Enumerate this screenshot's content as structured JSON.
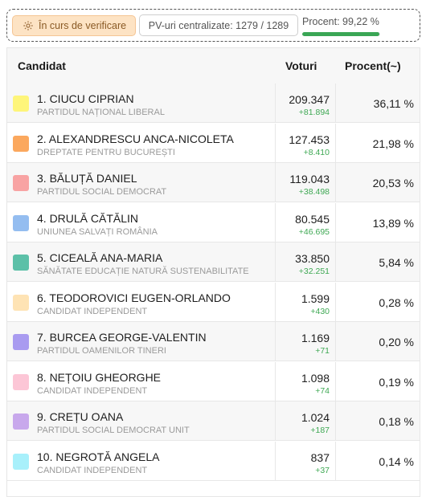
{
  "status": {
    "verify_label": "În curs de verificare",
    "pv_label": "PV-uri centralizate: 1279 / 1289",
    "percent_label": "Procent: 99,22 %",
    "percent_progress": 99.22
  },
  "table": {
    "headers": {
      "candidate": "Candidat",
      "votes": "Voturi",
      "percent": "Procent(~)"
    },
    "rows": [
      {
        "name": "1. CIUCU CIPRIAN",
        "party": "PARTIDUL NAȚIONAL LIBERAL",
        "votes": "209.347",
        "delta": "+81.894",
        "percent": "36,11 %",
        "color": "#fef57a"
      },
      {
        "name": "2. ALEXANDRESCU ANCA-NICOLETA",
        "party": "DREPTATE PENTRU BUCUREȘTI",
        "votes": "127.453",
        "delta": "+8.410",
        "percent": "21,98 %",
        "color": "#fba85e"
      },
      {
        "name": "3. BĂLUȚĂ DANIEL",
        "party": "PARTIDUL SOCIAL DEMOCRAT",
        "votes": "119.043",
        "delta": "+38.498",
        "percent": "20,53 %",
        "color": "#f8a3a3"
      },
      {
        "name": "4. DRULĂ CĂTĂLIN",
        "party": "UNIUNEA SALVAȚI ROMÂNIA",
        "votes": "80.545",
        "delta": "+46.695",
        "percent": "13,89 %",
        "color": "#94bdf0"
      },
      {
        "name": "5. CICEALĂ ANA-MARIA",
        "party": "SĂNĂTATE EDUCAȚIE NATURĂ SUSTENABILITATE",
        "votes": "33.850",
        "delta": "+32.251",
        "percent": "5,84 %",
        "color": "#5cc0a8"
      },
      {
        "name": "6. TEODOROVICI EUGEN-ORLANDO",
        "party": "CANDIDAT INDEPENDENT",
        "votes": "1.599",
        "delta": "+430",
        "percent": "0,28 %",
        "color": "#fee3b4"
      },
      {
        "name": "7. BURCEA GEORGE-VALENTIN",
        "party": "PARTIDUL OAMENILOR TINERI",
        "votes": "1.169",
        "delta": "+71",
        "percent": "0,20 %",
        "color": "#a99bf0"
      },
      {
        "name": "8. NEȚOIU GHEORGHE",
        "party": "CANDIDAT INDEPENDENT",
        "votes": "1.098",
        "delta": "+74",
        "percent": "0,19 %",
        "color": "#fcc6d6"
      },
      {
        "name": "9. CREȚU OANA",
        "party": "PARTIDUL SOCIAL DEMOCRAT UNIT",
        "votes": "1.024",
        "delta": "+187",
        "percent": "0,18 %",
        "color": "#c8a8ec"
      },
      {
        "name": "10. NEGROTĂ ANGELA",
        "party": "CANDIDAT INDEPENDENT",
        "votes": "837",
        "delta": "+37",
        "percent": "0,14 %",
        "color": "#a8f0fb"
      }
    ]
  }
}
